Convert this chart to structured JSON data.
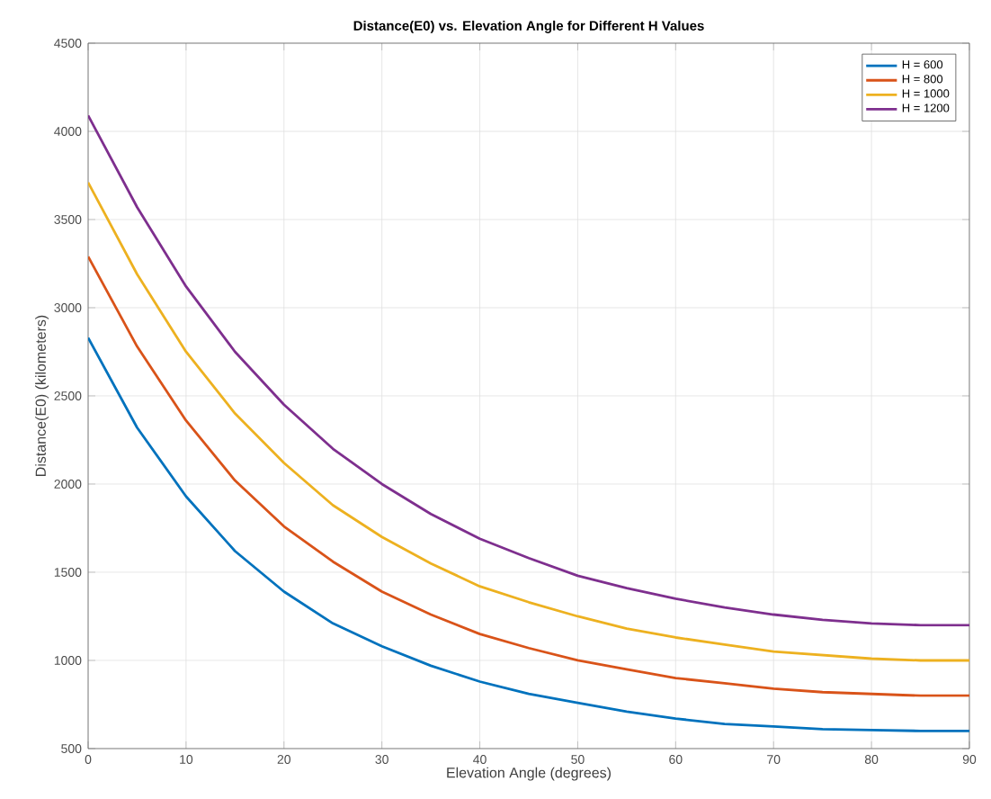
{
  "chart_data": {
    "type": "line",
    "title": "Distance(E0) vs. Elevation Angle for Different H Values",
    "xlabel": "Elevation Angle (degrees)",
    "ylabel": "Distance(E0) (kilometers)",
    "x": [
      0,
      5,
      10,
      15,
      20,
      25,
      30,
      35,
      40,
      45,
      50,
      55,
      60,
      65,
      70,
      75,
      80,
      85,
      90
    ],
    "series": [
      {
        "name": "H = 600",
        "color": "#0072bd",
        "values": [
          2830,
          2320,
          1930,
          1620,
          1390,
          1210,
          1080,
          970,
          880,
          810,
          760,
          710,
          670,
          640,
          625,
          610,
          605,
          600,
          600
        ]
      },
      {
        "name": "H = 800",
        "color": "#d95319",
        "values": [
          3290,
          2780,
          2360,
          2020,
          1760,
          1560,
          1390,
          1260,
          1150,
          1070,
          1000,
          950,
          900,
          870,
          840,
          820,
          810,
          800,
          800
        ]
      },
      {
        "name": "H = 1000",
        "color": "#edb120",
        "values": [
          3710,
          3190,
          2750,
          2400,
          2120,
          1880,
          1700,
          1550,
          1420,
          1330,
          1250,
          1180,
          1130,
          1090,
          1050,
          1030,
          1010,
          1000,
          1000
        ]
      },
      {
        "name": "H = 1200",
        "color": "#7e2f8e",
        "values": [
          4090,
          3570,
          3120,
          2750,
          2450,
          2200,
          2000,
          1830,
          1690,
          1580,
          1480,
          1410,
          1350,
          1300,
          1260,
          1230,
          1210,
          1200,
          1200
        ]
      }
    ],
    "xlim": [
      0,
      90
    ],
    "xticks": [
      0,
      10,
      20,
      30,
      40,
      50,
      60,
      70,
      80,
      90
    ],
    "ylim": [
      500,
      4500
    ],
    "yticks": [
      500,
      1000,
      1500,
      2000,
      2500,
      3000,
      3500,
      4000,
      4500
    ],
    "grid": true,
    "legend": "top right",
    "marker": "none",
    "line_style": "solid"
  }
}
